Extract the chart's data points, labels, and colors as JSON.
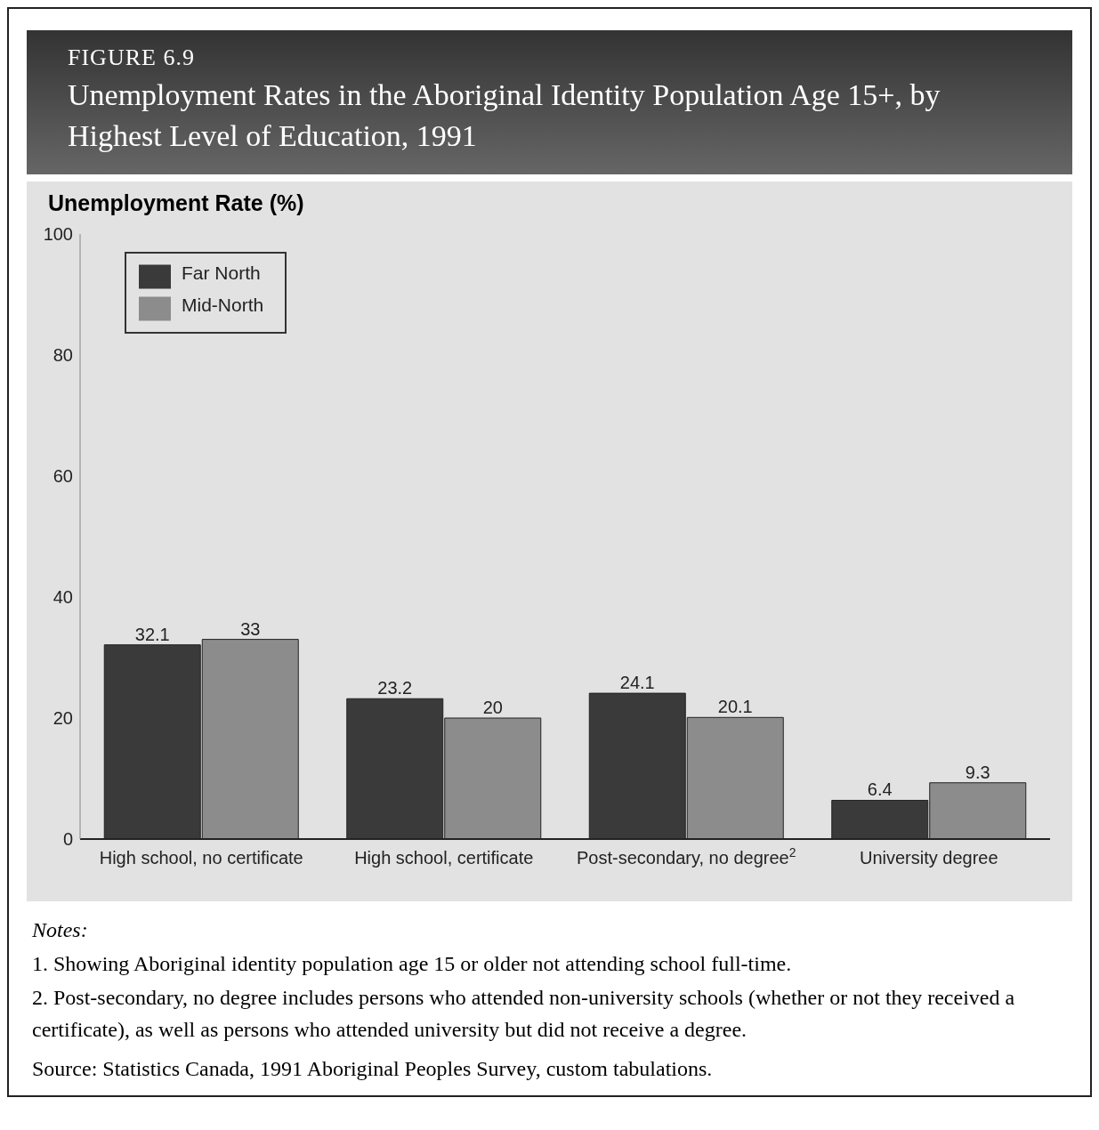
{
  "chart_data": {
    "type": "bar",
    "title": "FIGURE 6.9",
    "subtitle": "Unemployment Rates in the Aboriginal Identity Population Age 15+, by Highest Level of Education, 1991",
    "ylabel": "Unemployment Rate (%)",
    "categories": [
      "High school, no certificate",
      "High school, certificate",
      "Post-secondary, no degree$^{2}$",
      "University degree"
    ],
    "series": [
      {
        "name": "Far North",
        "color": "#3a3a3a",
        "values": [
          32.1,
          23.2,
          24.1,
          6.4
        ]
      },
      {
        "name": "Mid-North",
        "color": "#8c8c8c",
        "values": [
          33,
          20,
          20.1,
          9.3
        ]
      }
    ],
    "ylim": [
      0,
      100
    ],
    "yticks": [
      0,
      20,
      40,
      60,
      80,
      100
    ],
    "grid": false,
    "legend": "top left",
    "data_labels": true,
    "annotations": [
      "Notes:",
      "1. Showing Aboriginal identity population age 15 or older not attending school full-time.",
      "2. Post-secondary, no degree includes persons who attended non-university schools (whether or not they received a certificate), as well as persons who attended university but did not receive a degree.",
      "Source: Statistics Canada, 1991 Aboriginal Peoples Survey, custom tabulations."
    ]
  }
}
